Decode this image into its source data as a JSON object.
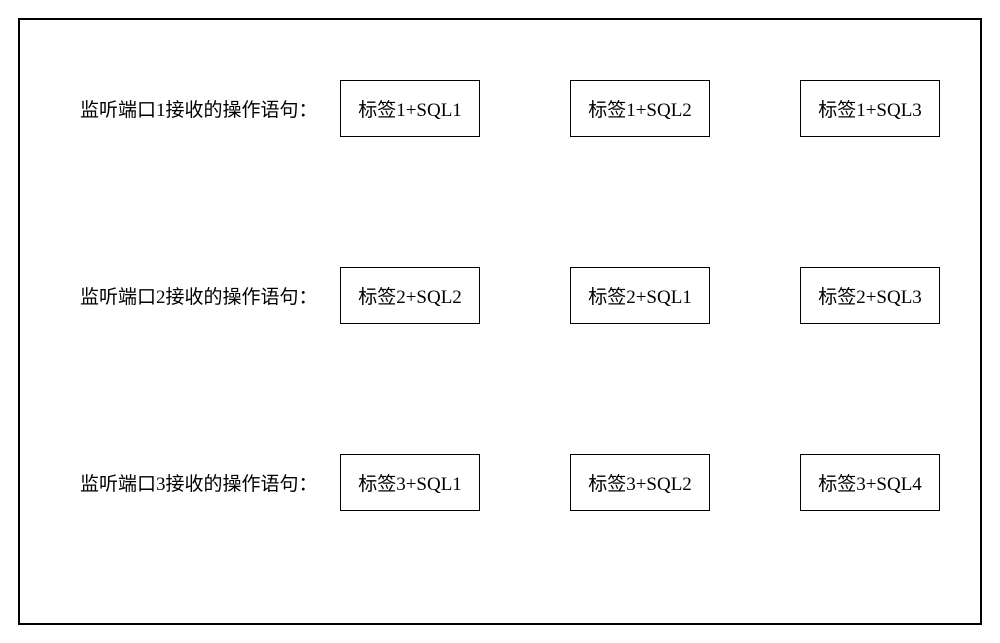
{
  "diagram": {
    "type": "table",
    "border_color": "#000000",
    "background_color": "#ffffff",
    "text_color": "#000000",
    "label_fontsize": 19,
    "box_fontsize": 19,
    "rows": [
      {
        "label": "监听端口1接收的操作语句：",
        "items": [
          "标签1+SQL1",
          "标签1+SQL2",
          "标签1+SQL3"
        ]
      },
      {
        "label": "监听端口2接收的操作语句：",
        "items": [
          "标签2+SQL2",
          "标签2+SQL1",
          "标签2+SQL3"
        ]
      },
      {
        "label": "监听端口3接收的操作语句：",
        "items": [
          "标签3+SQL1",
          "标签3+SQL2",
          "标签3+SQL4"
        ]
      }
    ]
  }
}
